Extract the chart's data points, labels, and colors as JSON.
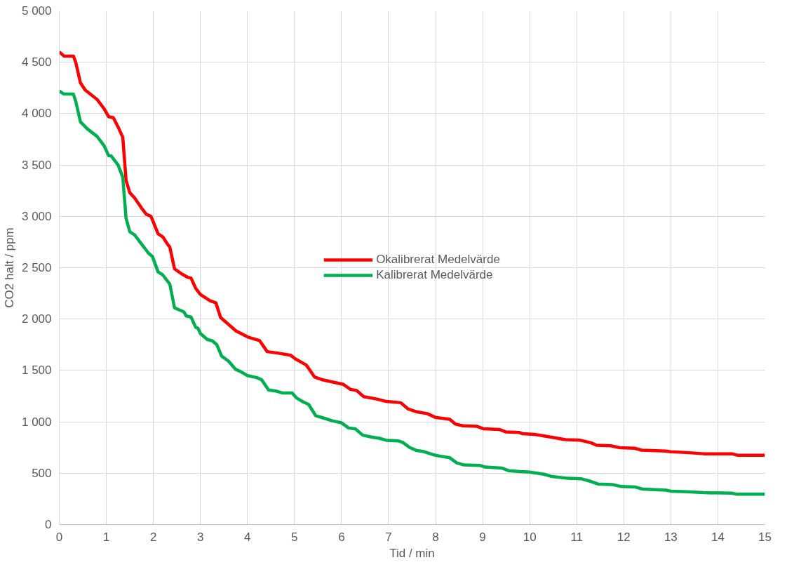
{
  "chart_data": {
    "type": "line",
    "xlabel": "Tid / min",
    "ylabel": "CO2 halt / ppm",
    "xlim": [
      0,
      15
    ],
    "ylim": [
      0,
      5000
    ],
    "xticks": [
      0,
      1,
      2,
      3,
      4,
      5,
      6,
      7,
      8,
      9,
      10,
      11,
      12,
      13,
      14,
      15
    ],
    "yticks": [
      0,
      500,
      {
        "value": 1000,
        "label": "1 000"
      },
      {
        "value": 1500,
        "label": "1 500"
      },
      {
        "value": 2000,
        "label": "2 000"
      },
      {
        "value": 2500,
        "label": "2 500"
      },
      {
        "value": 3000,
        "label": "3 000"
      },
      {
        "value": 3500,
        "label": "3 500"
      },
      {
        "value": 4000,
        "label": "4 000"
      },
      {
        "value": 4500,
        "label": "4 500"
      },
      {
        "value": 5000,
        "label": "5 000"
      }
    ],
    "grid": true,
    "legend": "center",
    "line_style": "solid",
    "marker": "none",
    "series": [
      {
        "name": "Okalibrerat Medelvärde",
        "color": "#ff0000",
        "x": [
          0,
          0.1,
          0.3,
          0.35,
          0.45,
          0.55,
          0.8,
          0.95,
          1.05,
          1.15,
          1.25,
          1.35,
          1.42,
          1.5,
          1.6,
          1.75,
          1.85,
          1.95,
          2.1,
          2.2,
          2.3,
          2.35,
          2.45,
          2.6,
          2.74,
          2.8,
          2.9,
          3.0,
          3.2,
          3.33,
          3.43,
          3.76,
          4.01,
          4.26,
          4.42,
          4.62,
          4.92,
          5.02,
          5.25,
          5.43,
          5.58,
          6.04,
          6.19,
          6.32,
          6.47,
          6.75,
          6.95,
          7.26,
          7.41,
          7.61,
          7.82,
          7.99,
          8.3,
          8.42,
          8.58,
          8.88,
          9.01,
          9.36,
          9.49,
          9.77,
          9.84,
          10.1,
          10.35,
          10.76,
          11.06,
          11.31,
          11.42,
          11.72,
          11.92,
          12.23,
          12.38,
          12.89,
          12.99,
          13.34,
          13.7,
          14.3,
          14.41,
          15
        ],
        "values": [
          4600,
          4560,
          4560,
          4500,
          4300,
          4230,
          4140,
          4050,
          3970,
          3960,
          3870,
          3770,
          3350,
          3230,
          3180,
          3080,
          3020,
          3000,
          2830,
          2800,
          2730,
          2700,
          2490,
          2440,
          2405,
          2400,
          2300,
          2240,
          2180,
          2157,
          2015,
          1884,
          1825,
          1790,
          1683,
          1671,
          1648,
          1612,
          1553,
          1435,
          1411,
          1364,
          1316,
          1305,
          1245,
          1222,
          1198,
          1186,
          1127,
          1096,
          1080,
          1044,
          1025,
          978,
          961,
          956,
          933,
          925,
          902,
          897,
          885,
          878,
          859,
          826,
          822,
          795,
          772,
          767,
          748,
          743,
          724,
          715,
          708,
          701,
          689,
          689,
          675,
          675
        ]
      },
      {
        "name": "Kalibrerat Medelvärde",
        "color": "#00b050",
        "x": [
          0,
          0.1,
          0.3,
          0.35,
          0.45,
          0.6,
          0.8,
          0.95,
          1.05,
          1.1,
          1.25,
          1.35,
          1.42,
          1.5,
          1.6,
          1.75,
          1.9,
          1.98,
          2.1,
          2.2,
          2.35,
          2.45,
          2.65,
          2.7,
          2.8,
          2.9,
          2.95,
          3.0,
          3.15,
          3.25,
          3.35,
          3.45,
          3.6,
          3.75,
          3.85,
          4.0,
          4.2,
          4.3,
          4.45,
          4.6,
          4.75,
          4.95,
          5.05,
          5.2,
          5.3,
          5.45,
          5.6,
          5.8,
          6.0,
          6.15,
          6.3,
          6.45,
          6.65,
          6.8,
          6.95,
          7.2,
          7.3,
          7.45,
          7.6,
          7.75,
          7.95,
          8.1,
          8.3,
          8.45,
          8.6,
          8.95,
          9.05,
          9.4,
          9.55,
          9.8,
          10.0,
          10.3,
          10.45,
          10.8,
          11.1,
          11.3,
          11.45,
          11.75,
          11.95,
          12.25,
          12.4,
          12.9,
          13.0,
          13.35,
          13.7,
          14.3,
          14.4,
          15
        ],
        "values": [
          4220,
          4190,
          4190,
          4120,
          3920,
          3850,
          3780,
          3690,
          3590,
          3590,
          3500,
          3380,
          2980,
          2850,
          2820,
          2730,
          2640,
          2610,
          2460,
          2430,
          2340,
          2110,
          2070,
          2030,
          2020,
          1920,
          1910,
          1860,
          1800,
          1790,
          1750,
          1640,
          1590,
          1510,
          1490,
          1450,
          1430,
          1410,
          1310,
          1300,
          1280,
          1280,
          1230,
          1190,
          1170,
          1060,
          1040,
          1010,
          990,
          940,
          930,
          870,
          850,
          840,
          820,
          815,
          800,
          750,
          720,
          710,
          680,
          665,
          650,
          600,
          580,
          575,
          560,
          550,
          525,
          515,
          510,
          490,
          470,
          450,
          445,
          420,
          395,
          390,
          370,
          365,
          345,
          335,
          325,
          320,
          310,
          305,
          295,
          295
        ]
      }
    ]
  }
}
